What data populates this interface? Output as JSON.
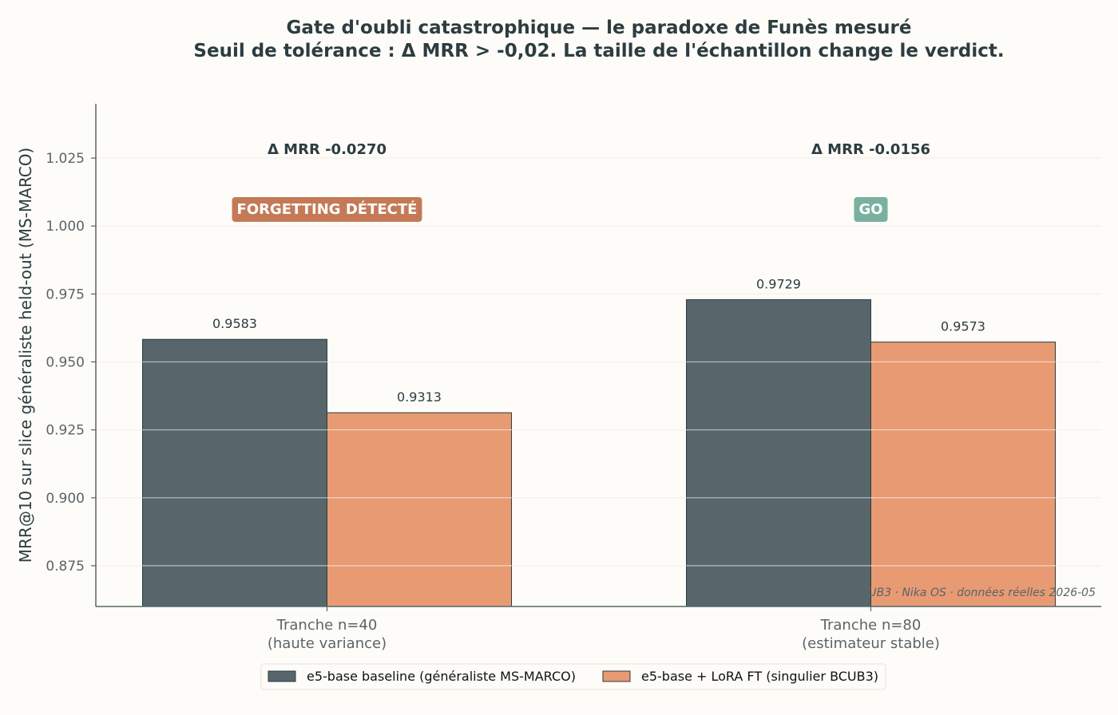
{
  "chart_data": {
    "type": "bar",
    "title_lines": [
      "Gate d'oubli catastrophique — le paradoxe de Funès mesuré",
      "Seuil de tolérance : Δ MRR > -0,02. La taille de l'échantillon change le verdict."
    ],
    "ylabel": "MRR@10 sur slice généraliste held-out (MS-MARCO)",
    "xlabel": "",
    "ylim": [
      0.86,
      1.045
    ],
    "yticks": [
      0.875,
      0.9,
      0.925,
      0.95,
      0.975,
      1.0,
      1.025
    ],
    "ytick_labels": [
      "0.875",
      "0.900",
      "0.925",
      "0.950",
      "0.975",
      "1.000",
      "1.025"
    ],
    "grid": "horizontal",
    "categories": [
      [
        "Tranche n=40",
        "(haute variance)"
      ],
      [
        "Tranche n=80",
        "(estimateur stable)"
      ]
    ],
    "series": [
      {
        "name": "e5-base baseline (généraliste MS-MARCO)",
        "color": "#56666b",
        "values": [
          0.9583,
          0.9729
        ],
        "labels": [
          "0.9583",
          "0.9729"
        ]
      },
      {
        "name": "e5-base + LoRA FT (singulier BCUB3)",
        "color": "#e89a73",
        "values": [
          0.9313,
          0.9573
        ],
        "labels": [
          "0.9313",
          "0.9573"
        ]
      }
    ],
    "annotations": [
      {
        "delta": "Δ MRR -0.0270",
        "badge": "FORGETTING DÉTECTÉ",
        "badge_color": "#c47a56"
      },
      {
        "delta": "Δ MRR -0.0156",
        "badge": "GO",
        "badge_color": "#7ab0a0"
      }
    ],
    "legend_position": "bottom-center",
    "watermark": "BCUB3 · Nika OS · données réelles 2026-05"
  }
}
